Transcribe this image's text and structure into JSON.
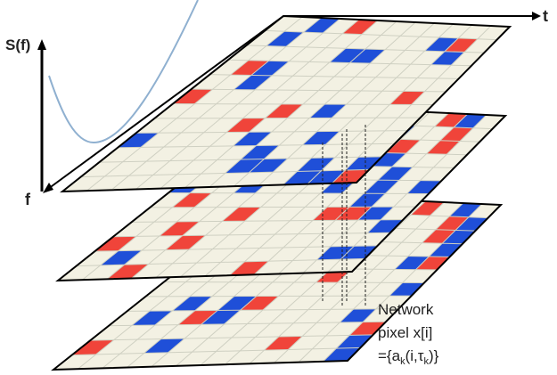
{
  "axes": {
    "y_label": "S(f)",
    "x_label": "f",
    "time_label": "t"
  },
  "annotation": {
    "lines": [
      "Network",
      "pixel x[i]"
    ],
    "formula": {
      "prefix": "={a",
      "sub1": "k",
      "middle": "(i,τ",
      "sub2": "k",
      "suffix": ")}"
    }
  }
}
